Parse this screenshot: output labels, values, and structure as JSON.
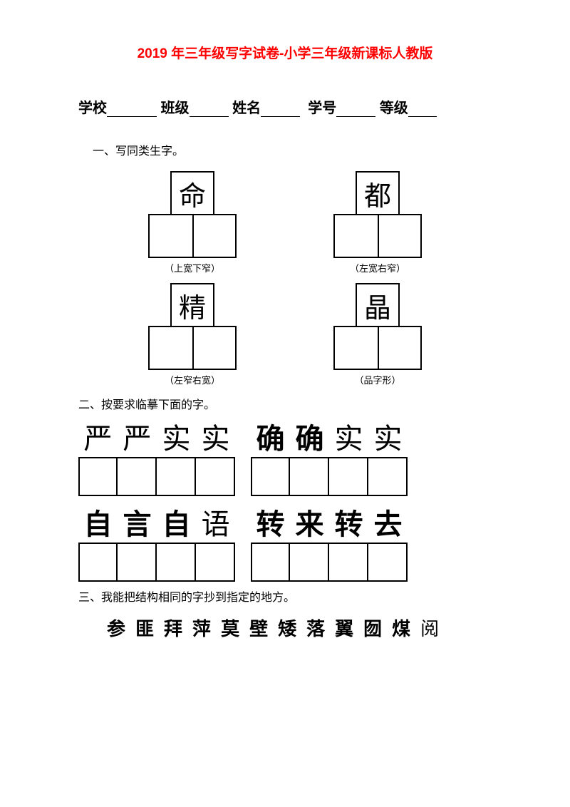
{
  "title": "2019 年三年级写字试卷-小学三年级新课标人教版",
  "info": {
    "school_label": "学校",
    "class_label": "班级",
    "name_label": "姓名",
    "id_label": "学号",
    "grade_label": "等级"
  },
  "section1": {
    "heading": "一、写同类生字。",
    "blocks": [
      {
        "char": "命",
        "caption": "（上宽下窄）"
      },
      {
        "char": "都",
        "caption": "（左宽右窄）"
      },
      {
        "char": "精",
        "caption": "（左窄右宽）"
      },
      {
        "char": "晶",
        "caption": "（品字形）"
      }
    ]
  },
  "section2": {
    "heading": "二、按要求临摹下面的字。",
    "phrases": [
      {
        "groups": [
          {
            "chars": [
              {
                "t": "严",
                "w": "light"
              },
              {
                "t": "严",
                "w": "light"
              },
              {
                "t": "实",
                "w": "light"
              },
              {
                "t": "实",
                "w": "light"
              }
            ]
          },
          {
            "chars": [
              {
                "t": "确",
                "w": "bold"
              },
              {
                "t": "确",
                "w": "bold"
              },
              {
                "t": "实",
                "w": "light"
              },
              {
                "t": "实",
                "w": "light"
              }
            ]
          }
        ]
      },
      {
        "groups": [
          {
            "chars": [
              {
                "t": "自",
                "w": "bold"
              },
              {
                "t": "言",
                "w": "bold"
              },
              {
                "t": "自",
                "w": "bold"
              },
              {
                "t": "语",
                "w": "light"
              }
            ]
          },
          {
            "chars": [
              {
                "t": "转",
                "w": "bold"
              },
              {
                "t": "来",
                "w": "bold"
              },
              {
                "t": "转",
                "w": "bold"
              },
              {
                "t": "去",
                "w": "bold"
              }
            ]
          }
        ]
      }
    ]
  },
  "section3": {
    "heading": "三、我能把结构相同的字抄到指定的地方。",
    "chars": [
      {
        "t": "参",
        "w": "bold"
      },
      {
        "t": "匪",
        "w": "bold"
      },
      {
        "t": "拜",
        "w": "bold"
      },
      {
        "t": "萍",
        "w": "bold"
      },
      {
        "t": "莫",
        "w": "bold"
      },
      {
        "t": "壁",
        "w": "bold"
      },
      {
        "t": "矮",
        "w": "bold"
      },
      {
        "t": "落",
        "w": "bold"
      },
      {
        "t": "翼",
        "w": "bold"
      },
      {
        "t": "囫",
        "w": "bold"
      },
      {
        "t": "煤",
        "w": "bold"
      },
      {
        "t": "阅",
        "w": "light"
      }
    ]
  }
}
